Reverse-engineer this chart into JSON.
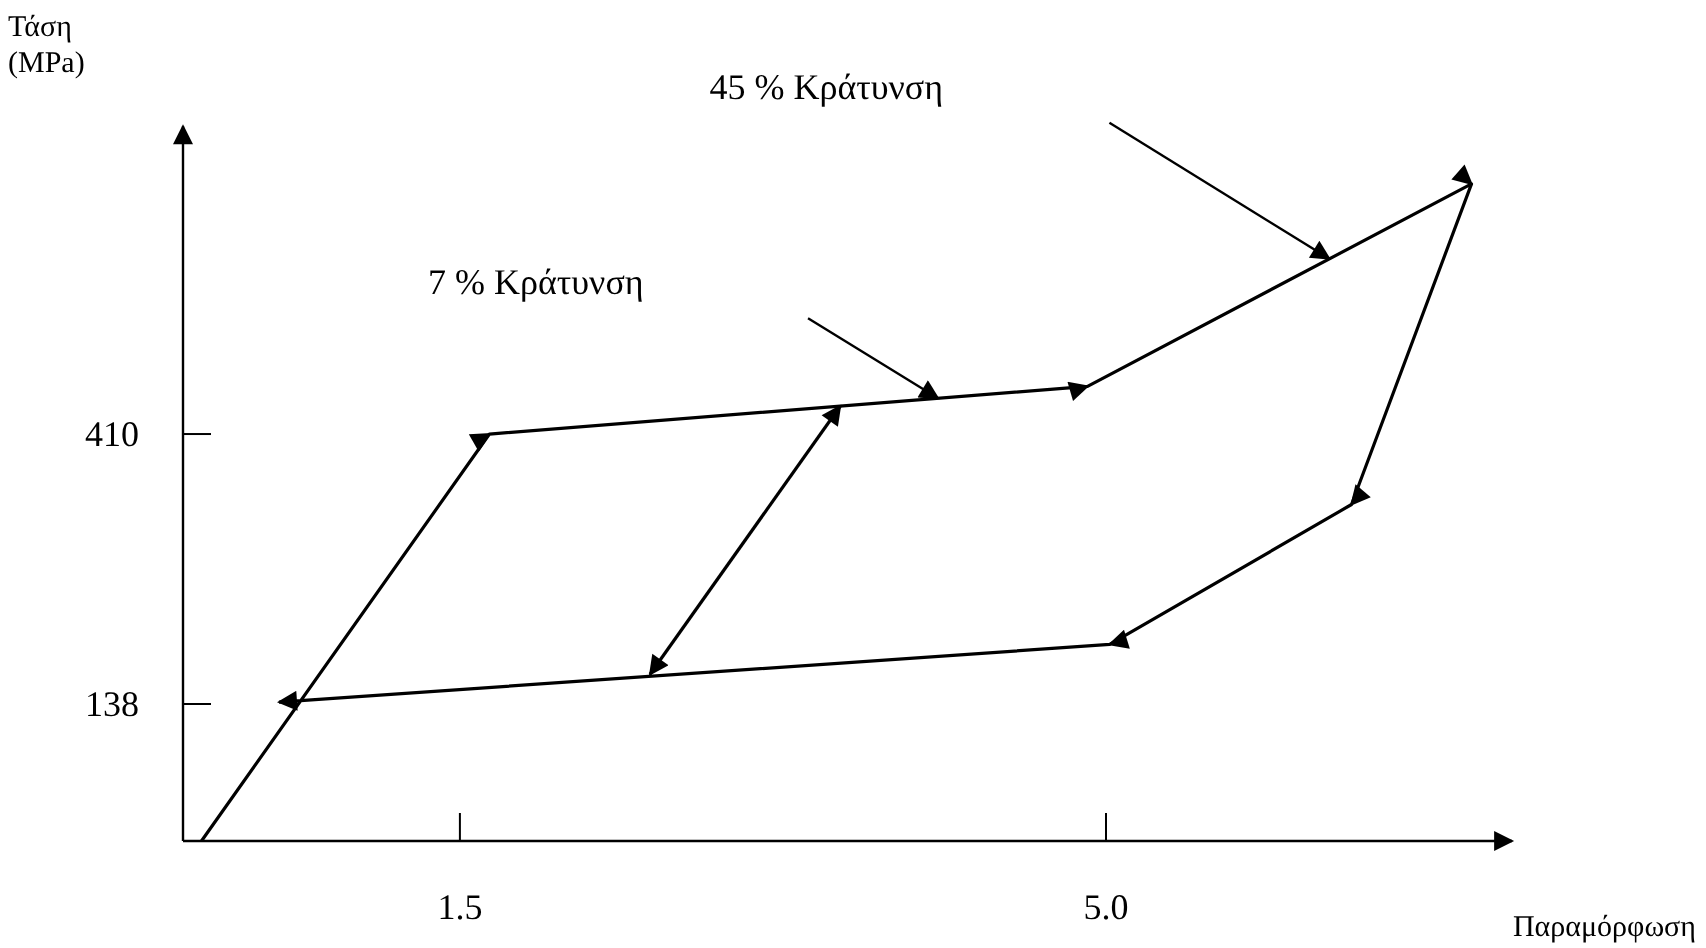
{
  "chart_data": {
    "type": "line",
    "xlabel": "Παραμόρφωση",
    "ylabel": "Τάση (MPa)",
    "xlim": [
      0,
      7.2
    ],
    "ylim": [
      0,
      720
    ],
    "xticks": [
      1.5,
      {
        "value": 5,
        "label": "5.0"
      }
    ],
    "yticks": [
      138,
      410
    ],
    "series": [
      {
        "color": "#000000",
        "x": [
          0.1,
          1.66,
          4.9,
          6.98,
          6.33,
          5.02,
          0.52
        ],
        "values": [
          0,
          410,
          458,
          662,
          339,
          198,
          140
        ]
      },
      {
        "color": "#000000",
        "x": [
          3.56,
          2.53
        ],
        "values": [
          438,
          168
        ]
      }
    ],
    "annotations": [
      "45 % Κράτυνση",
      "7 % Κράτυνση"
    ],
    "marker": "none",
    "grid": false
  }
}
